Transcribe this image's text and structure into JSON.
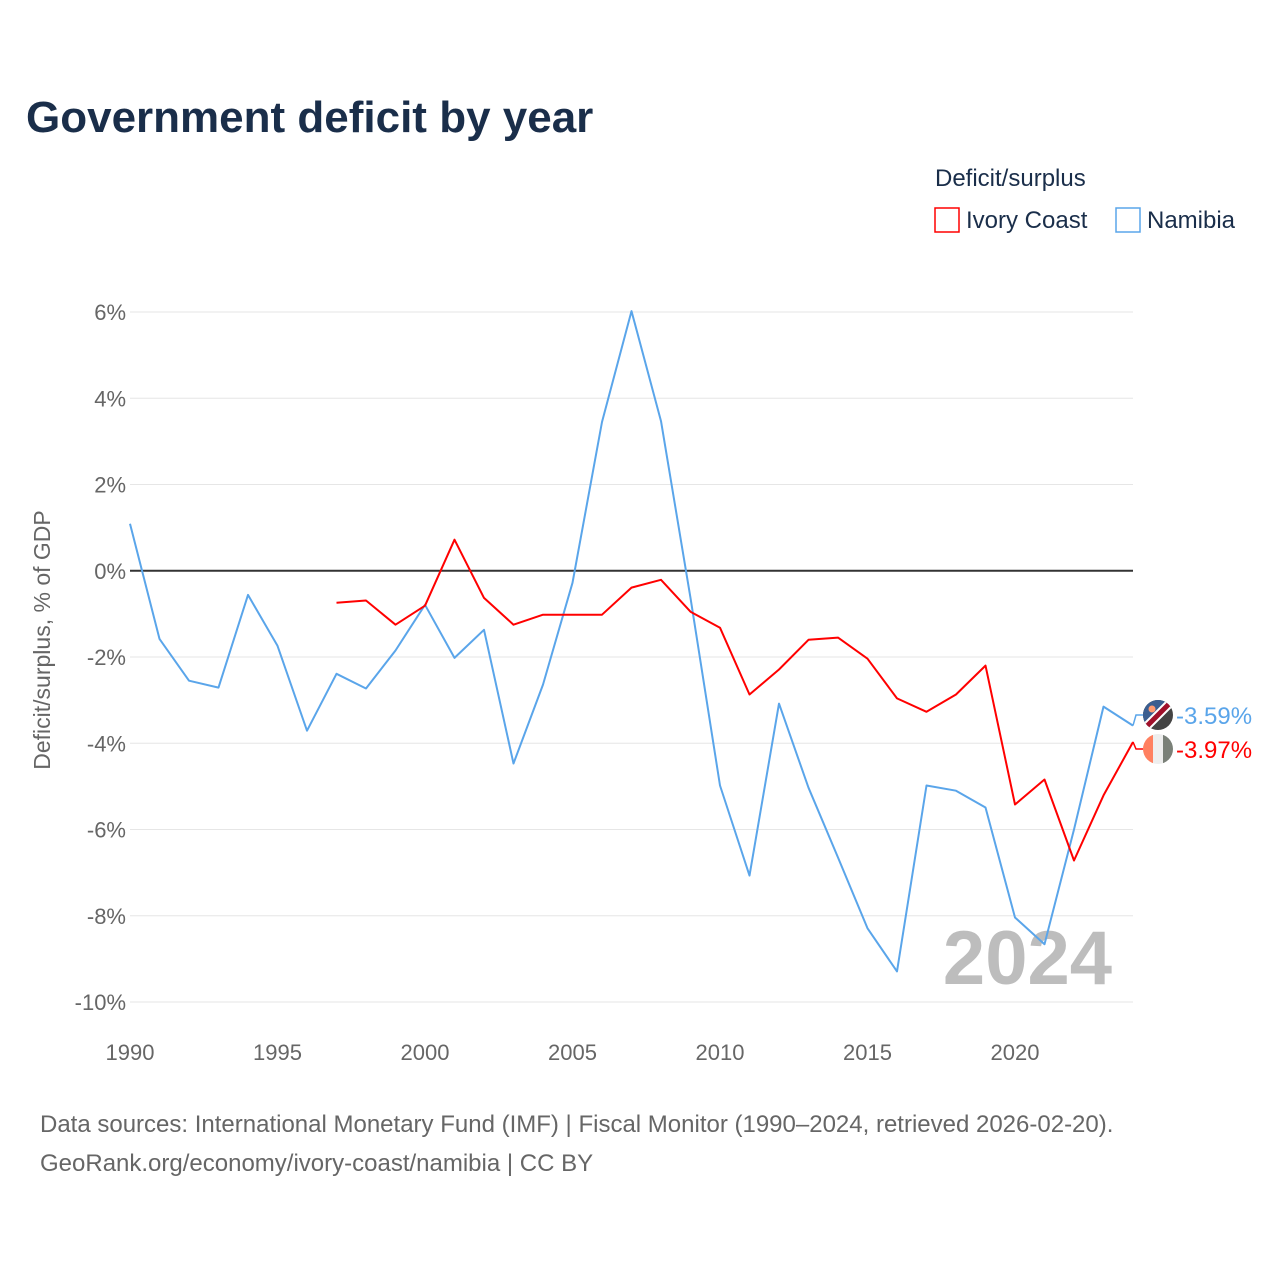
{
  "chart_data": {
    "type": "line",
    "title": "Government deficit by year",
    "xlabel": "",
    "ylabel": "Deficit/surplus, % of GDP",
    "xlim": [
      1990,
      2024
    ],
    "ylim": [
      -10,
      6
    ],
    "x_ticks": [
      1990,
      1995,
      2000,
      2005,
      2010,
      2015,
      2020
    ],
    "x_tick_labels": [
      "1990",
      "1995",
      "2000",
      "2005",
      "2010",
      "2015",
      "2020"
    ],
    "y_ticks": [
      6,
      4,
      2,
      0,
      -2,
      -4,
      -6,
      -8,
      -10
    ],
    "y_tick_labels": [
      "6%",
      "4%",
      "2%",
      "0%",
      "-2%",
      "-4%",
      "-6%",
      "-8%",
      "-10%"
    ],
    "grid": true,
    "legend_title": "Deficit/surplus",
    "legend_position": "top-right",
    "year_watermark": "2024",
    "series": [
      {
        "name": "Ivory Coast",
        "color": "#ff0000",
        "end_label": "-3.97%",
        "x": [
          1997,
          1998,
          1999,
          2000,
          2001,
          2002,
          2003,
          2004,
          2005,
          2006,
          2007,
          2008,
          2009,
          2010,
          2011,
          2012,
          2013,
          2014,
          2015,
          2016,
          2017,
          2018,
          2019,
          2020,
          2021,
          2022,
          2023,
          2024
        ],
        "values": [
          -0.74,
          -0.69,
          -1.25,
          -0.81,
          0.72,
          -0.63,
          -1.25,
          -1.02,
          -1.02,
          -1.02,
          -0.39,
          -0.21,
          -0.95,
          -1.32,
          -2.87,
          -2.29,
          -1.6,
          -1.55,
          -2.04,
          -2.96,
          -3.27,
          -2.87,
          -2.2,
          -5.42,
          -4.84,
          -6.72,
          -5.21,
          -3.97
        ]
      },
      {
        "name": "Namibia",
        "color": "#5aa5ea",
        "end_label": "-3.59%",
        "x": [
          1990,
          1991,
          1992,
          1993,
          1994,
          1995,
          1996,
          1997,
          1998,
          1999,
          2000,
          2001,
          2002,
          2003,
          2004,
          2005,
          2006,
          2007,
          2008,
          2009,
          2010,
          2011,
          2012,
          2013,
          2014,
          2015,
          2016,
          2017,
          2018,
          2019,
          2020,
          2021,
          2022,
          2023,
          2024
        ],
        "values": [
          1.09,
          -1.58,
          -2.55,
          -2.71,
          -0.56,
          -1.74,
          -3.71,
          -2.39,
          -2.73,
          -1.85,
          -0.79,
          -2.02,
          -1.37,
          -4.47,
          -2.64,
          -0.28,
          3.45,
          6.02,
          3.47,
          -0.63,
          -4.98,
          -7.07,
          -3.08,
          -5.03,
          -6.65,
          -8.29,
          -9.29,
          -4.98,
          -5.1,
          -5.49,
          -8.04,
          -8.66,
          -6.0,
          -3.15,
          -3.59
        ]
      }
    ]
  },
  "footer": {
    "line1": "Data sources: International Monetary Fund (IMF) | Fiscal Monitor (1990–2024, retrieved 2026-02-20).",
    "line2": "GeoRank.org/economy/ivory-coast/namibia | CC BY"
  }
}
